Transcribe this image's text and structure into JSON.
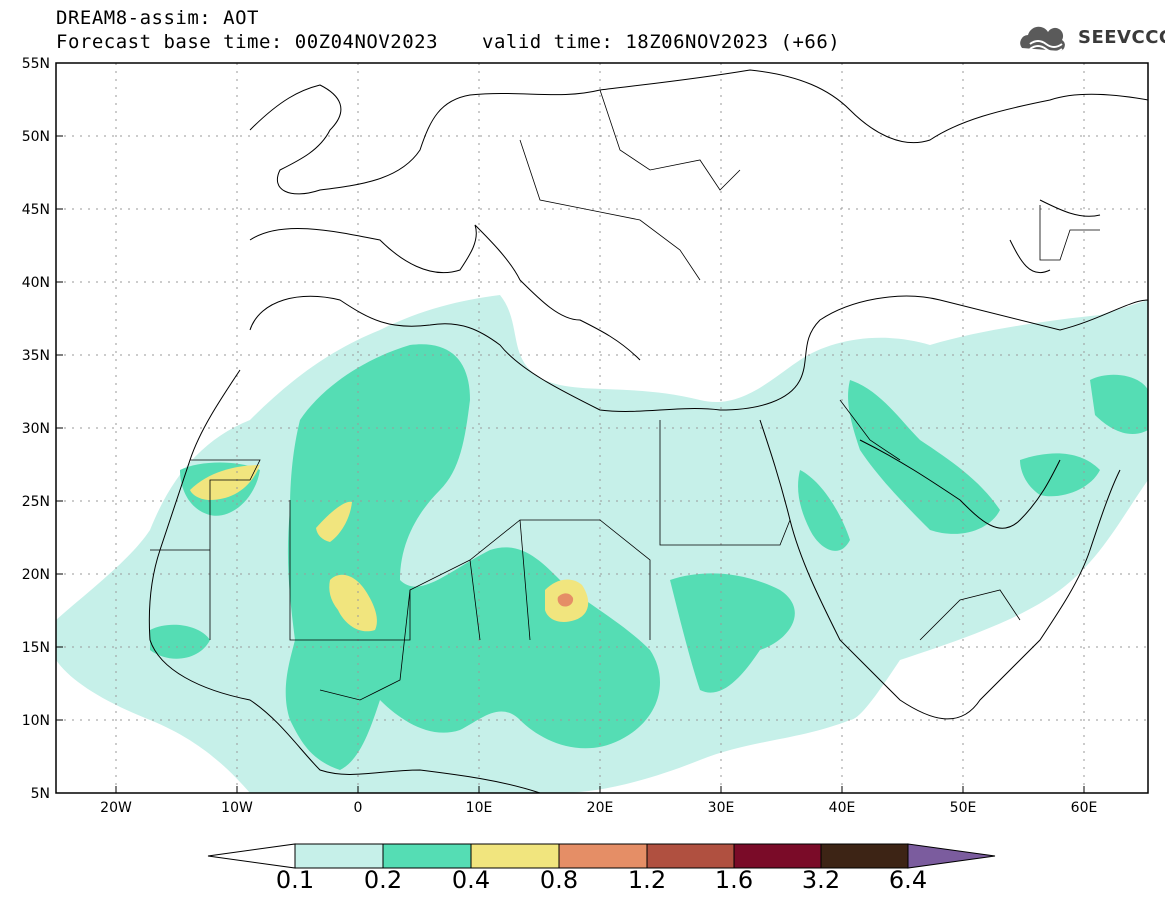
{
  "header": {
    "title_line1": "DREAM8-assim: AOT",
    "base_time": "Forecast base time: 00Z04NOV2023",
    "valid_time": "valid time: 18Z06NOV2023 (+66)"
  },
  "logo": {
    "text": "SEEVCCC",
    "icon": "cloud-logo-icon"
  },
  "map": {
    "lat_labels": [
      "55N",
      "50N",
      "45N",
      "40N",
      "35N",
      "30N",
      "25N",
      "20N",
      "15N",
      "10N",
      "5N"
    ],
    "lon_labels": [
      "20W",
      "10W",
      "0",
      "10E",
      "20E",
      "30E",
      "40E",
      "50E",
      "60E"
    ],
    "lat_range": [
      5,
      55
    ],
    "lon_range": [
      -25,
      65
    ],
    "gridlines": true
  },
  "colorbar": {
    "labels": [
      "0.1",
      "0.2",
      "0.4",
      "0.8",
      "1.2",
      "1.6",
      "3.2",
      "6.4"
    ],
    "colors": [
      "#ffffff",
      "#c6f0e9",
      "#55ddb4",
      "#f1e57e",
      "#e58e66",
      "#b05040",
      "#7a0b28",
      "#3d2415",
      "#7b5c9e"
    ]
  }
}
